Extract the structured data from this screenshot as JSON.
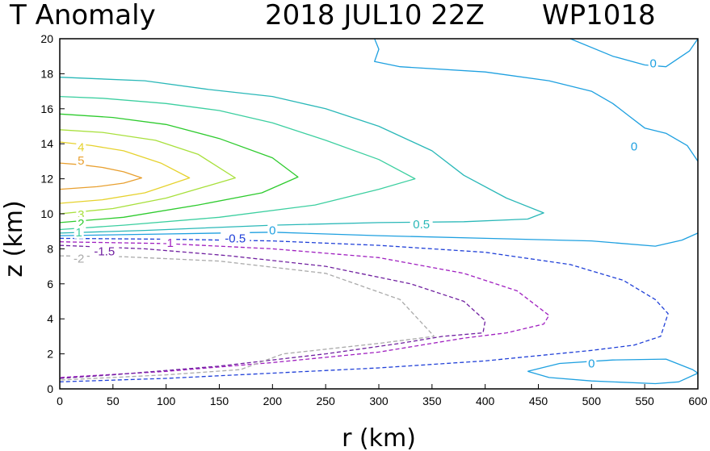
{
  "chart_data": {
    "type": "contour",
    "title": "T Anomaly",
    "subtitle": "2018 JUL10 22Z",
    "storm_id": "WP1018",
    "xlabel": "r (km)",
    "ylabel": "z (km)",
    "xlim": [
      0,
      600
    ],
    "ylim": [
      0,
      20
    ],
    "xticks": [
      "0",
      "50",
      "100",
      "150",
      "200",
      "250",
      "300",
      "350",
      "400",
      "450",
      "500",
      "550",
      "600"
    ],
    "yticks": [
      "0",
      "2",
      "4",
      "6",
      "8",
      "10",
      "12",
      "14",
      "16",
      "18",
      "20"
    ],
    "contours": [
      {
        "level": "5",
        "color": "#e8a030",
        "dash": false,
        "points": [
          [
            0,
            11.4
          ],
          [
            35,
            11.55
          ],
          [
            60,
            11.75
          ],
          [
            77,
            12.05
          ],
          [
            60,
            12.4
          ],
          [
            40,
            12.65
          ],
          [
            20,
            12.8
          ],
          [
            0,
            12.9
          ]
        ]
      },
      {
        "level": "4",
        "color": "#e6d22e",
        "dash": false,
        "points": [
          [
            0,
            10.6
          ],
          [
            40,
            10.8
          ],
          [
            80,
            11.2
          ],
          [
            122,
            12.05
          ],
          [
            95,
            12.9
          ],
          [
            60,
            13.6
          ],
          [
            30,
            13.9
          ],
          [
            0,
            14.1
          ]
        ]
      },
      {
        "level": "3",
        "color": "#a8e03c",
        "dash": false,
        "points": [
          [
            0,
            10.0
          ],
          [
            50,
            10.3
          ],
          [
            100,
            10.9
          ],
          [
            165,
            12.05
          ],
          [
            130,
            13.4
          ],
          [
            90,
            14.2
          ],
          [
            40,
            14.65
          ],
          [
            0,
            14.8
          ]
        ]
      },
      {
        "level": "2",
        "color": "#2ecb2e",
        "dash": false,
        "points": [
          [
            0,
            9.5
          ],
          [
            60,
            9.8
          ],
          [
            130,
            10.5
          ],
          [
            190,
            11.2
          ],
          [
            224,
            12.1
          ],
          [
            200,
            13.2
          ],
          [
            150,
            14.3
          ],
          [
            100,
            15.1
          ],
          [
            50,
            15.5
          ],
          [
            0,
            15.7
          ]
        ]
      },
      {
        "level": "1",
        "color": "#3ccfa0",
        "dash": false,
        "points": [
          [
            0,
            9.1
          ],
          [
            60,
            9.35
          ],
          [
            150,
            9.8
          ],
          [
            240,
            10.5
          ],
          [
            300,
            11.4
          ],
          [
            334,
            12.0
          ],
          [
            300,
            13.1
          ],
          [
            250,
            14.2
          ],
          [
            200,
            15.2
          ],
          [
            150,
            15.9
          ],
          [
            100,
            16.3
          ],
          [
            40,
            16.6
          ],
          [
            0,
            16.7
          ]
        ]
      },
      {
        "level": "0.5",
        "color": "#2ab8b8",
        "dash": false,
        "points": [
          [
            0,
            8.9
          ],
          [
            80,
            9.05
          ],
          [
            200,
            9.35
          ],
          [
            300,
            9.5
          ],
          [
            380,
            9.55
          ],
          [
            440,
            9.7
          ],
          [
            455,
            10.05
          ],
          [
            420,
            10.9
          ],
          [
            380,
            12.2
          ],
          [
            350,
            13.6
          ],
          [
            300,
            15.0
          ],
          [
            250,
            16.0
          ],
          [
            200,
            16.7
          ],
          [
            140,
            17.1
          ],
          [
            80,
            17.6
          ],
          [
            0,
            17.8
          ]
        ]
      },
      {
        "level": "0",
        "color": "#1ea0e0",
        "dash": false,
        "points": [
          [
            0,
            8.75
          ],
          [
            100,
            8.85
          ],
          [
            200,
            8.95
          ],
          [
            300,
            8.75
          ],
          [
            400,
            8.6
          ],
          [
            500,
            8.45
          ],
          [
            560,
            8.15
          ],
          [
            585,
            8.5
          ],
          [
            600,
            8.9
          ]
        ]
      },
      {
        "level": "0",
        "color": "#1ea0e0",
        "dash": false,
        "points": [
          [
            296,
            20.0
          ],
          [
            300,
            19.4
          ],
          [
            296,
            18.7
          ],
          [
            320,
            18.4
          ],
          [
            400,
            18.1
          ],
          [
            460,
            17.6
          ],
          [
            500,
            17.0
          ],
          [
            520,
            16.3
          ],
          [
            535,
            15.6
          ],
          [
            550,
            14.9
          ],
          [
            570,
            14.6
          ],
          [
            590,
            13.9
          ],
          [
            600,
            13.0
          ]
        ]
      },
      {
        "level": "0",
        "color": "#1ea0e0",
        "dash": false,
        "points": [
          [
            480,
            20.0
          ],
          [
            520,
            19.0
          ],
          [
            550,
            18.5
          ],
          [
            570,
            18.4
          ],
          [
            592,
            19.3
          ],
          [
            600,
            20.0
          ]
        ]
      },
      {
        "level": "0",
        "color": "#1ea0e0",
        "dash": false,
        "points": [
          [
            440,
            1.0
          ],
          [
            470,
            1.45
          ],
          [
            520,
            1.65
          ],
          [
            570,
            1.7
          ],
          [
            595,
            1.1
          ],
          [
            600,
            0.9
          ]
        ]
      },
      {
        "level": "0",
        "color": "#1ea0e0",
        "dash": false,
        "points": [
          [
            440,
            1.0
          ],
          [
            460,
            0.65
          ],
          [
            500,
            0.45
          ],
          [
            560,
            0.3
          ],
          [
            582,
            0.4
          ],
          [
            600,
            0.9
          ]
        ]
      },
      {
        "level": "-0.5",
        "color": "#2040d8",
        "dash": true,
        "points": [
          [
            0,
            8.6
          ],
          [
            100,
            8.55
          ],
          [
            200,
            8.45
          ],
          [
            300,
            8.2
          ],
          [
            400,
            7.8
          ],
          [
            480,
            7.1
          ],
          [
            530,
            6.2
          ],
          [
            560,
            5.1
          ],
          [
            572,
            4.3
          ],
          [
            565,
            3.0
          ],
          [
            540,
            2.5
          ],
          [
            500,
            2.2
          ],
          [
            450,
            1.9
          ],
          [
            400,
            1.6
          ],
          [
            300,
            1.2
          ],
          [
            200,
            0.9
          ],
          [
            100,
            0.6
          ],
          [
            0,
            0.4
          ]
        ]
      },
      {
        "level": "-1",
        "color": "#a020c0",
        "dash": true,
        "points": [
          [
            0,
            8.4
          ],
          [
            100,
            8.3
          ],
          [
            200,
            8.0
          ],
          [
            300,
            7.5
          ],
          [
            380,
            6.6
          ],
          [
            430,
            5.6
          ],
          [
            460,
            4.2
          ],
          [
            455,
            3.7
          ],
          [
            420,
            3.2
          ],
          [
            380,
            2.9
          ],
          [
            300,
            2.1
          ],
          [
            200,
            1.5
          ],
          [
            100,
            1.0
          ],
          [
            0,
            0.65
          ]
        ]
      },
      {
        "level": "-1.5",
        "color": "#7020a0",
        "dash": true,
        "points": [
          [
            0,
            8.2
          ],
          [
            80,
            8.0
          ],
          [
            160,
            7.6
          ],
          [
            250,
            7.0
          ],
          [
            330,
            6.0
          ],
          [
            380,
            5.0
          ],
          [
            400,
            3.9
          ],
          [
            398,
            3.2
          ],
          [
            360,
            3.0
          ],
          [
            320,
            2.6
          ],
          [
            250,
            2.0
          ],
          [
            150,
            1.3
          ],
          [
            50,
            0.8
          ],
          [
            0,
            0.6
          ]
        ]
      },
      {
        "level": "-2",
        "color": "#aaaaaa",
        "dash": true,
        "points": [
          [
            0,
            7.6
          ],
          [
            60,
            7.55
          ],
          [
            150,
            7.3
          ],
          [
            250,
            6.6
          ],
          [
            320,
            5.1
          ],
          [
            352,
            3.0
          ],
          [
            300,
            2.6
          ],
          [
            210,
            2.0
          ],
          [
            170,
            1.1
          ],
          [
            100,
            0.8
          ],
          [
            0,
            0.5
          ]
        ]
      }
    ],
    "labels": [
      {
        "text": "5",
        "color": "#e8a030",
        "x": 20,
        "y": 13.05
      },
      {
        "text": "4",
        "color": "#e6d22e",
        "x": 20,
        "y": 13.8
      },
      {
        "text": "3",
        "color": "#a8e03c",
        "x": 20,
        "y": 9.95
      },
      {
        "text": "2",
        "color": "#2ecb2e",
        "x": 20,
        "y": 9.45
      },
      {
        "text": "1",
        "color": "#3ccfa0",
        "x": 18,
        "y": 8.95
      },
      {
        "text": "0.5",
        "color": "#2ab8b8",
        "x": 340,
        "y": 9.4
      },
      {
        "text": "0",
        "color": "#1ea0e0",
        "x": 200,
        "y": 9.05
      },
      {
        "text": "0",
        "color": "#1ea0e0",
        "x": 558,
        "y": 18.6
      },
      {
        "text": "0",
        "color": "#1ea0e0",
        "x": 540,
        "y": 13.85
      },
      {
        "text": "0",
        "color": "#1ea0e0",
        "x": 500,
        "y": 1.45
      },
      {
        "text": "-0.5",
        "color": "#2040d8",
        "x": 165,
        "y": 8.6
      },
      {
        "text": "-1",
        "color": "#a020c0",
        "x": 102,
        "y": 8.35
      },
      {
        "text": "-1.5",
        "color": "#7020a0",
        "x": 42,
        "y": 7.85
      },
      {
        "text": "-2",
        "color": "#aaaaaa",
        "x": 18,
        "y": 7.45
      }
    ]
  }
}
